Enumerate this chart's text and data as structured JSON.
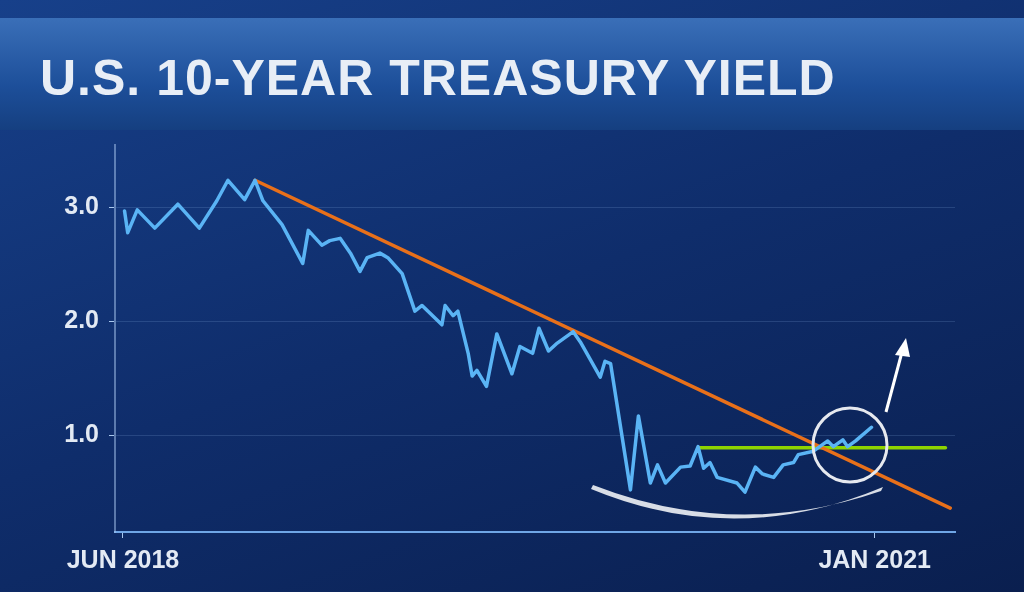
{
  "chart_data": {
    "type": "line",
    "title": "U.S. 10-YEAR TREASURY YIELD",
    "xlim": [
      "2018-05-22",
      "2021-04-12"
    ],
    "xticks": [
      {
        "value": "2018-06-01",
        "label": "JUN 2018"
      },
      {
        "value": "2021-01-01",
        "label": "JAN 2021"
      }
    ],
    "ylim": [
      0.15,
      3.55
    ],
    "yticks": [
      {
        "value": 1,
        "label": "1.0"
      },
      {
        "value": 2,
        "label": "2.0"
      },
      {
        "value": 3,
        "label": "3.0"
      }
    ],
    "grid": "y",
    "legend": false,
    "marker": "none",
    "line_style": "solid",
    "series": [
      {
        "color": "#5ab4f5",
        "x": [
          "2018-06-03",
          "2018-06-07",
          "2018-06-19",
          "2018-07-11",
          "2018-08-09",
          "2018-09-05",
          "2018-09-27",
          "2018-10-11",
          "2018-11-01",
          "2018-11-14",
          "2018-11-24",
          "2018-12-18",
          "2019-01-13",
          "2019-01-20",
          "2019-02-06",
          "2019-02-16",
          "2019-03-01",
          "2019-03-14",
          "2019-03-26",
          "2019-04-04",
          "2019-04-20",
          "2019-04-30",
          "2019-05-18",
          "2019-06-03",
          "2019-06-12",
          "2019-07-07",
          "2019-07-11",
          "2019-07-21",
          "2019-07-27",
          "2019-08-09",
          "2019-08-14",
          "2019-08-20",
          "2019-09-01",
          "2019-09-14",
          "2019-10-03",
          "2019-10-13",
          "2019-10-29",
          "2019-11-06",
          "2019-11-18",
          "2019-11-29",
          "2019-12-13",
          "2019-12-19",
          "2019-12-28",
          "2020-01-22",
          "2020-01-28",
          "2020-02-04",
          "2020-02-29",
          "2020-03-10",
          "2020-03-25",
          "2020-04-03",
          "2020-04-13",
          "2020-05-02",
          "2020-05-14",
          "2020-05-24",
          "2020-05-31",
          "2020-06-08",
          "2020-06-17",
          "2020-07-12",
          "2020-07-22",
          "2020-08-04",
          "2020-08-13",
          "2020-08-27",
          "2020-09-08",
          "2020-09-21",
          "2020-09-27",
          "2020-10-16",
          "2020-11-03",
          "2020-11-10",
          "2020-11-22",
          "2020-11-28",
          "2020-12-08",
          "2020-12-28"
        ],
        "values": [
          2.97,
          2.78,
          2.98,
          2.82,
          3.03,
          2.82,
          3.06,
          3.24,
          3.07,
          3.24,
          3.06,
          2.85,
          2.51,
          2.8,
          2.67,
          2.71,
          2.73,
          2.6,
          2.44,
          2.56,
          2.6,
          2.56,
          2.42,
          2.09,
          2.14,
          1.97,
          2.14,
          2.05,
          2.09,
          1.72,
          1.52,
          1.57,
          1.43,
          1.89,
          1.54,
          1.78,
          1.72,
          1.94,
          1.74,
          1.81,
          1.88,
          1.91,
          1.82,
          1.51,
          1.65,
          1.63,
          0.52,
          1.17,
          0.58,
          0.74,
          0.58,
          0.72,
          0.73,
          0.9,
          0.71,
          0.76,
          0.63,
          0.58,
          0.5,
          0.72,
          0.66,
          0.63,
          0.74,
          0.76,
          0.83,
          0.86,
          0.95,
          0.9,
          0.96,
          0.9,
          0.95,
          1.07
        ]
      },
      {
        "type": "line",
        "color": "#e8701a",
        "x": [
          "2018-11-14",
          "2021-04-06"
        ],
        "values": [
          3.24,
          0.36
        ]
      },
      {
        "type": "line",
        "color": "#8fd400",
        "x": [
          "2020-05-24",
          "2021-03-31"
        ],
        "values": [
          0.89,
          0.89
        ]
      }
    ]
  }
}
